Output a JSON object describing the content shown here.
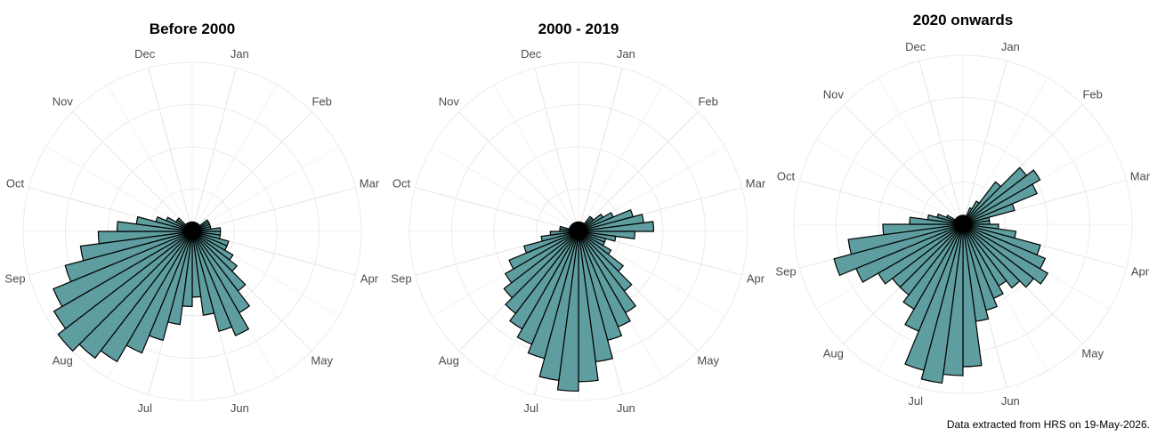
{
  "caption": "Data extracted from HRS on 19-May-2026.",
  "chart_data": [
    {
      "type": "bar",
      "polar": true,
      "title": "Before 2000",
      "month_labels": [
        "Jan",
        "Feb",
        "Mar",
        "Apr",
        "May",
        "Jun",
        "Jul",
        "Aug",
        "Sep",
        "Oct",
        "Nov",
        "Dec"
      ],
      "bar_color": "#5f9ea0",
      "values": [
        1,
        1,
        1,
        1,
        1,
        1,
        1,
        2,
        2,
        2,
        2,
        3,
        3,
        3,
        4,
        4,
        5,
        6,
        8,
        10,
        12,
        11,
        9,
        7,
        8,
        10,
        12,
        14,
        16,
        17,
        18,
        17,
        16,
        14,
        12,
        10,
        8,
        6,
        4,
        3,
        2,
        2,
        1,
        1,
        1,
        1,
        1,
        1
      ]
    },
    {
      "type": "bar",
      "polar": true,
      "title": "2000 - 2019",
      "month_labels": [
        "Jan",
        "Feb",
        "Mar",
        "Apr",
        "May",
        "Jun",
        "Jul",
        "Aug",
        "Sep",
        "Oct",
        "Nov",
        "Dec"
      ],
      "bar_color": "#5f9ea0",
      "values": [
        1,
        1,
        1,
        1,
        1,
        2,
        2,
        3,
        4,
        6,
        7,
        8,
        6,
        4,
        3,
        3,
        4,
        6,
        8,
        10,
        11,
        12,
        14,
        16,
        17,
        16,
        14,
        13,
        12,
        11,
        10,
        9,
        8,
        6,
        4,
        3,
        2,
        2,
        1,
        1,
        1,
        1,
        1,
        1,
        1,
        1,
        1,
        1
      ]
    },
    {
      "type": "bar",
      "polar": true,
      "title": "2020 onwards",
      "month_labels": [
        "Jan",
        "Feb",
        "Mar",
        "Apr",
        "May",
        "Jun",
        "Jul",
        "Aug",
        "Sep",
        "Oct",
        "Nov",
        "Dec"
      ],
      "bar_color": "#5f9ea0",
      "values": [
        1,
        1,
        1,
        2,
        3,
        6,
        9,
        10,
        9,
        6,
        3,
        3,
        4,
        6,
        9,
        10,
        11,
        10,
        9,
        8,
        9,
        10,
        11,
        16,
        17,
        18,
        17,
        13,
        11,
        10,
        10,
        11,
        13,
        15,
        13,
        9,
        6,
        4,
        3,
        2,
        1,
        1,
        1,
        1,
        1,
        1,
        1,
        1
      ]
    }
  ]
}
